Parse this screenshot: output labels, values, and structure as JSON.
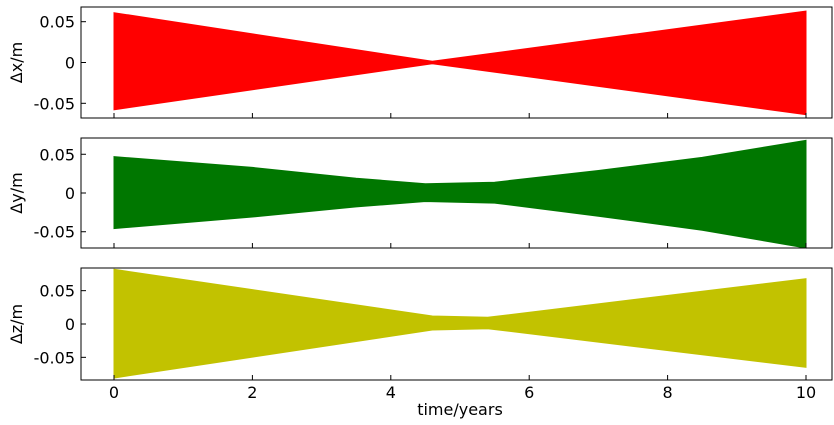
{
  "chart_data": [
    {
      "type": "area",
      "ylabel": "Δx/m",
      "xlim": [
        0,
        10
      ],
      "ylim": [
        -0.068,
        0.068
      ],
      "yticks": [
        -0.05,
        0,
        0.05
      ],
      "ytick_labels": [
        "-0.05",
        "0",
        "0.05"
      ],
      "xticks": [
        0,
        2,
        4,
        6,
        8,
        10
      ],
      "show_xtick_labels": false,
      "series": [
        {
          "color": "#ff0000",
          "x": [
            0,
            4.6,
            10
          ],
          "upper": [
            0.061,
            0.0015,
            0.063
          ],
          "lower": [
            -0.058,
            -0.0015,
            -0.064
          ]
        }
      ]
    },
    {
      "type": "area",
      "ylabel": "Δy/m",
      "xlim": [
        0,
        10
      ],
      "ylim": [
        -0.071,
        0.071
      ],
      "yticks": [
        -0.05,
        0,
        0.05
      ],
      "ytick_labels": [
        "-0.05",
        "0",
        "0.05"
      ],
      "xticks": [
        0,
        2,
        4,
        6,
        8,
        10
      ],
      "show_xtick_labels": false,
      "series": [
        {
          "color": "#007700",
          "x": [
            0,
            2,
            3.5,
            4.5,
            5.5,
            7,
            8.5,
            10
          ],
          "upper": [
            0.047,
            0.033,
            0.019,
            0.012,
            0.014,
            0.029,
            0.046,
            0.068
          ],
          "lower": [
            -0.046,
            -0.031,
            -0.018,
            -0.011,
            -0.013,
            -0.03,
            -0.048,
            -0.071
          ]
        }
      ]
    },
    {
      "type": "area",
      "ylabel": "Δz/m",
      "xlim": [
        0,
        10
      ],
      "ylim": [
        -0.084,
        0.084
      ],
      "yticks": [
        -0.05,
        0,
        0.05
      ],
      "ytick_labels": [
        "-0.05",
        "0",
        "0.05"
      ],
      "xticks": [
        0,
        2,
        4,
        6,
        8,
        10
      ],
      "show_xtick_labels": true,
      "xtick_labels": [
        "0",
        "2",
        "4",
        "6",
        "8",
        "10"
      ],
      "xlabel": "time/years",
      "series": [
        {
          "color": "#c2c200",
          "x": [
            0,
            4.6,
            5.4,
            10
          ],
          "upper": [
            0.082,
            0.012,
            0.01,
            0.068
          ],
          "lower": [
            -0.081,
            -0.009,
            -0.007,
            -0.065
          ]
        }
      ]
    }
  ]
}
